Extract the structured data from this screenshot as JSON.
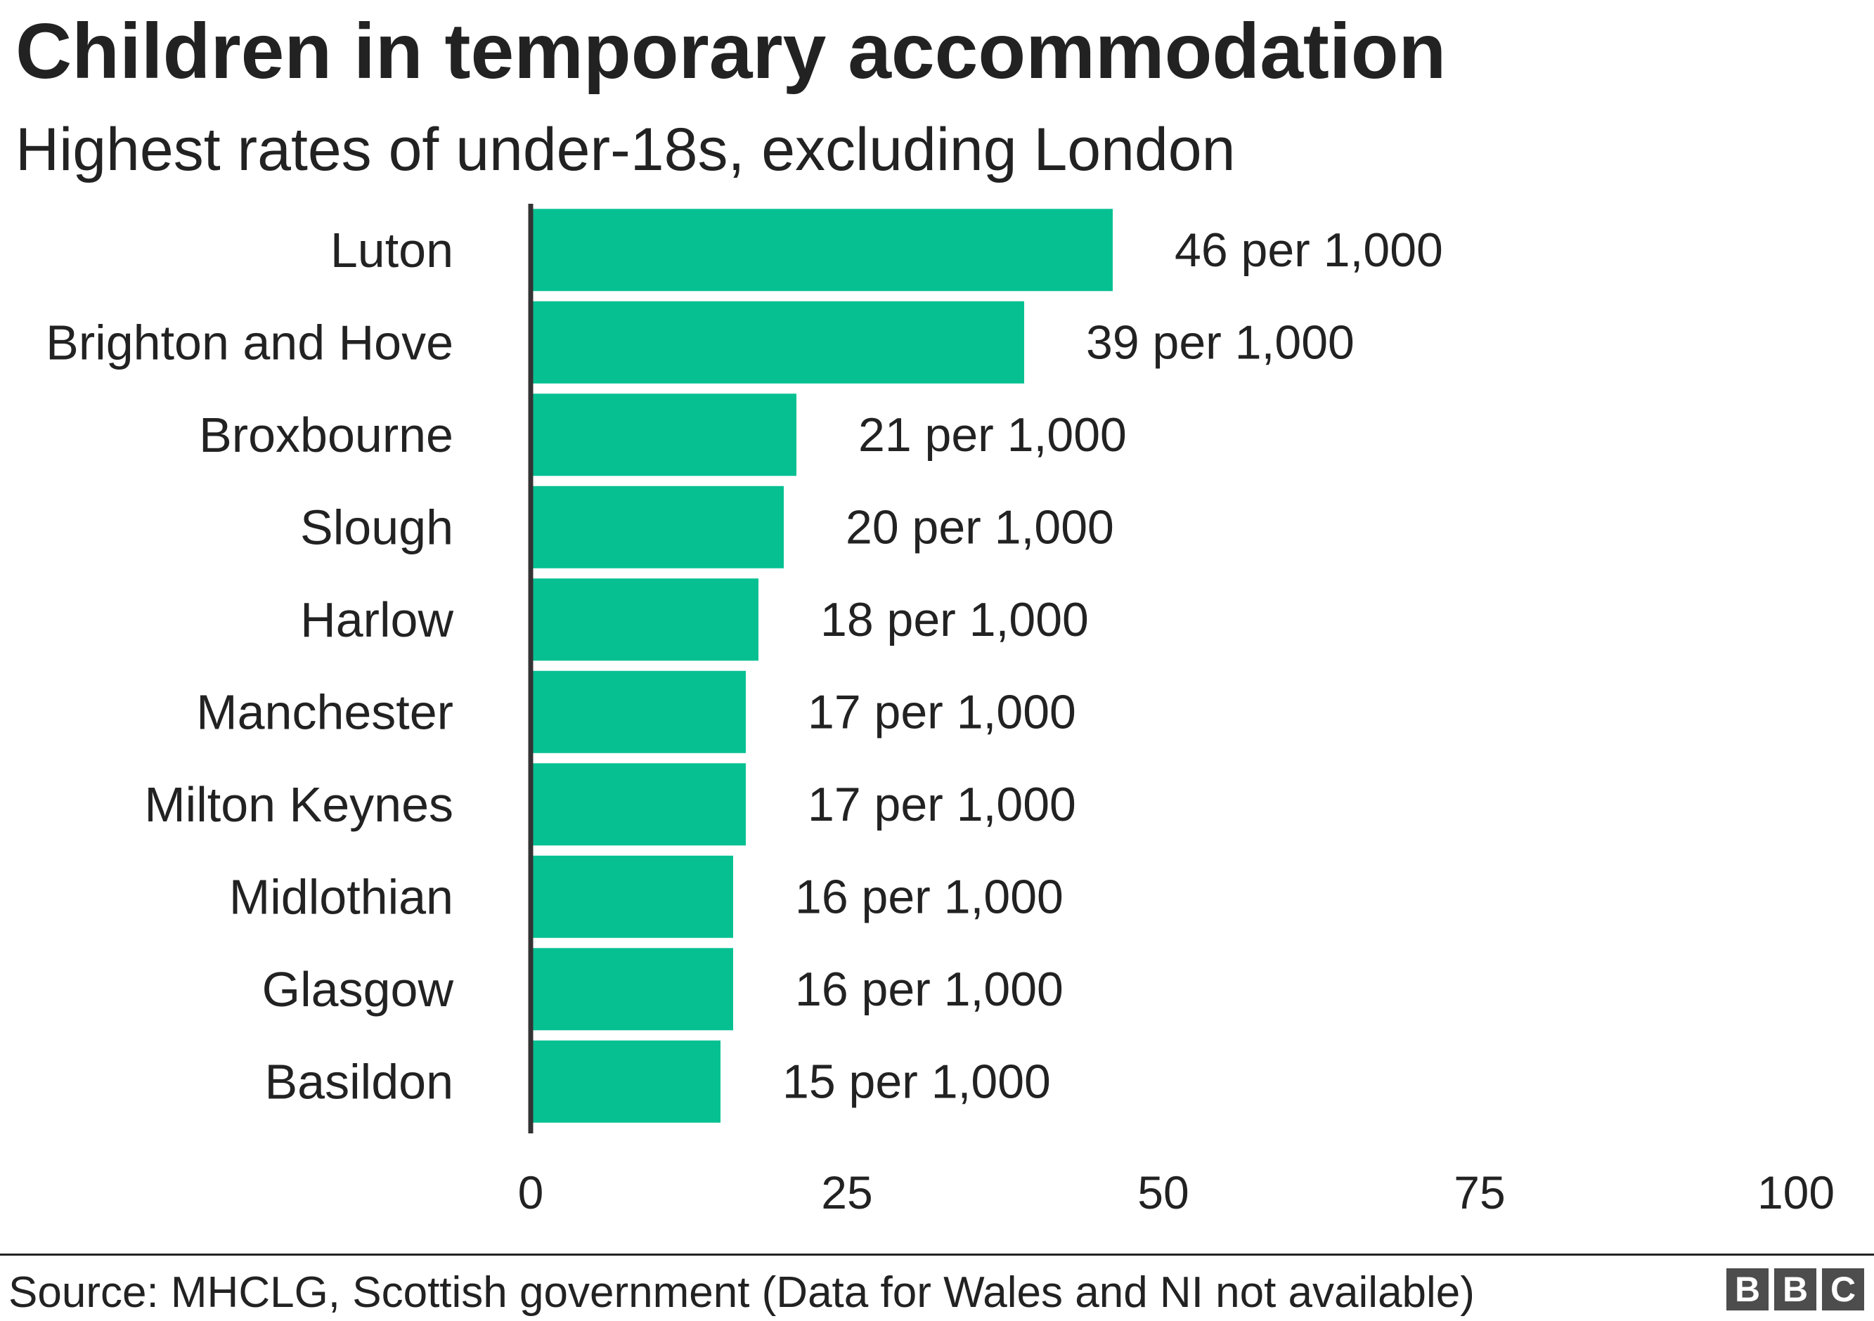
{
  "title": "Children in temporary accommodation",
  "subtitle": "Highest rates of under-18s, excluding London",
  "source": "Source: MHCLG, Scottish government (Data for Wales and NI not available)",
  "logo": [
    "B",
    "B",
    "C"
  ],
  "colors": {
    "bar": "#06C092",
    "text": "#222222",
    "axis": "#333333",
    "logo_block": "#4D4D4D"
  },
  "chart_data": {
    "type": "bar",
    "orientation": "horizontal",
    "title": "Children in temporary accommodation",
    "subtitle": "Highest rates of under-18s, excluding London",
    "categories": [
      "Luton",
      "Brighton and Hove",
      "Broxbourne",
      "Slough",
      "Harlow",
      "Manchester",
      "Milton Keynes",
      "Midlothian",
      "Glasgow",
      "Basildon"
    ],
    "values": [
      46,
      39,
      21,
      20,
      18,
      17,
      17,
      16,
      16,
      15
    ],
    "value_labels": [
      "46 per 1,000",
      "39 per 1,000",
      "21 per 1,000",
      "20 per 1,000",
      "18 per 1,000",
      "17 per 1,000",
      "17 per 1,000",
      "16 per 1,000",
      "16 per 1,000",
      "15 per 1,000"
    ],
    "xlim": [
      0,
      100
    ],
    "xticks": [
      0,
      25,
      50,
      75,
      100
    ],
    "xlabel": "",
    "ylabel": "",
    "grid": false,
    "legend": "none"
  }
}
